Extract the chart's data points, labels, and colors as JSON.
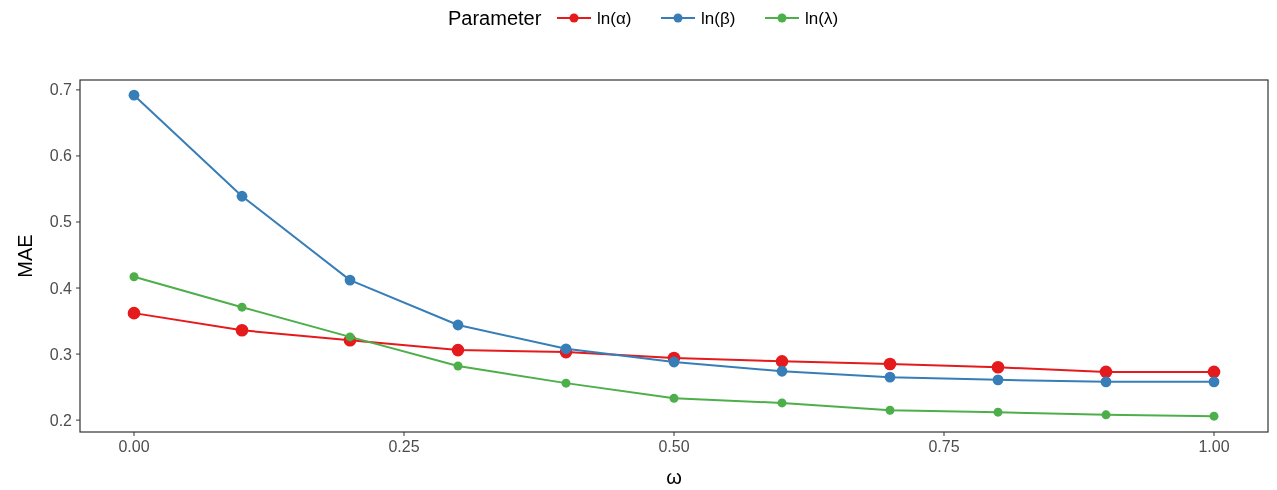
{
  "chart_data": {
    "type": "line",
    "xlabel": "ω",
    "ylabel": "MAE",
    "legend_title": "Parameter",
    "legend": "top",
    "marker": "circle",
    "grid": false,
    "x": [
      0,
      0.1,
      0.2,
      0.3,
      0.4,
      0.5,
      0.6,
      0.7,
      0.8,
      0.9,
      1.0
    ],
    "xlim": [
      -0.05,
      1.05
    ],
    "xticks": [
      {
        "value": 0,
        "label": "0.00"
      },
      {
        "value": 0.25,
        "label": "0.25"
      },
      {
        "value": 0.5,
        "label": "0.50"
      },
      {
        "value": 0.75,
        "label": "0.75"
      },
      {
        "value": 1,
        "label": "1.00"
      }
    ],
    "ylim": [
      0.182,
      0.715
    ],
    "yticks": [
      0.2,
      0.3,
      0.4,
      0.5,
      0.6,
      0.7
    ],
    "series": [
      {
        "name": "ln(α)",
        "color": "#e41a1c",
        "values": [
          0.362,
          0.336,
          0.321,
          0.306,
          0.303,
          0.294,
          0.289,
          0.285,
          0.28,
          0.273,
          0.273
        ]
      },
      {
        "name": "ln(β)",
        "color": "#377eb8",
        "values": [
          0.692,
          0.539,
          0.412,
          0.344,
          0.308,
          0.288,
          0.274,
          0.265,
          0.261,
          0.258,
          0.258
        ]
      },
      {
        "name": "ln(λ)",
        "color": "#4daf4a",
        "values": [
          0.417,
          0.371,
          0.326,
          0.282,
          0.256,
          0.233,
          0.226,
          0.215,
          0.212,
          0.208,
          0.206
        ]
      }
    ]
  }
}
